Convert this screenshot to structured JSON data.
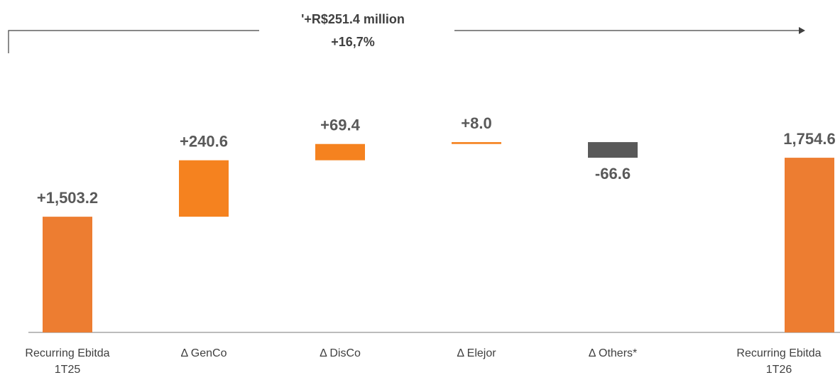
{
  "chart_data": {
    "type": "waterfall",
    "annotation": [
      "'+R$251.4 million",
      "+16,7%"
    ],
    "categories": [
      [
        "Recurring Ebitda",
        "1T25"
      ],
      [
        "Δ GenCo"
      ],
      [
        "Δ DisCo"
      ],
      [
        "Δ Elejor"
      ],
      [
        "Δ Others*"
      ],
      [
        "Recurring Ebitda",
        "1T26"
      ]
    ],
    "values": [
      1503.2,
      240.6,
      69.4,
      8.0,
      -66.6,
      1754.6
    ],
    "value_labels": [
      "+1,503.2",
      "+240.6",
      "+69.4",
      "+8.0",
      "-66.6",
      "1,754.6"
    ],
    "totals": [
      true,
      false,
      false,
      false,
      false,
      true
    ],
    "total_color": "#ed7d31",
    "increase_color": "#f5821f",
    "decrease_color": "#595959",
    "ylim": [
      1010,
      2100
    ]
  }
}
